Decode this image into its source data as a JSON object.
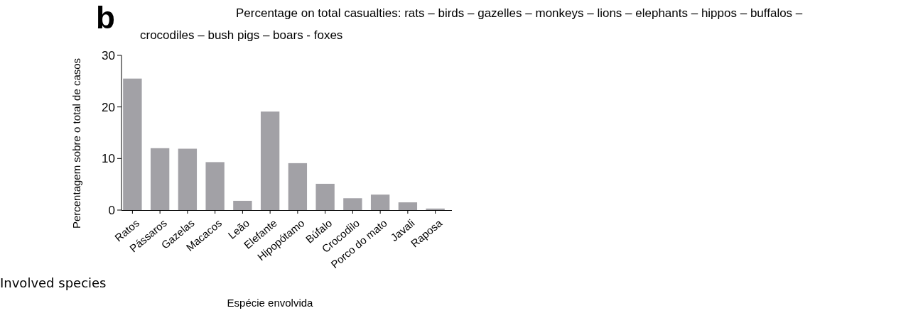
{
  "chart_data": {
    "type": "bar",
    "title": "Percentage on total casualties: rats – birds – gazelles – monkeys – lions – elephants – hippos – buffalos – crocodiles – bush pigs – boars - foxes",
    "xlabel": "Espécie envolvida",
    "ylabel": "Percentagem sobre o total de casos",
    "annotations": [
      "b",
      "Involved species"
    ],
    "categories": [
      "Ratos",
      "Pássaros",
      "Gazelas",
      "Macacos",
      "Leão",
      "Elefante",
      "Hipopótamo",
      "Búfalo",
      "Crocodilo",
      "Porco do mato",
      "Javali",
      "Raposa"
    ],
    "values": [
      25.5,
      12.0,
      11.9,
      9.3,
      1.8,
      19.1,
      9.1,
      5.1,
      2.3,
      3.0,
      1.5,
      0.3
    ],
    "color": "#a2a1a6",
    "ylim": [
      0,
      30
    ],
    "yticks": [
      0,
      10,
      20,
      30
    ],
    "grid": false
  }
}
